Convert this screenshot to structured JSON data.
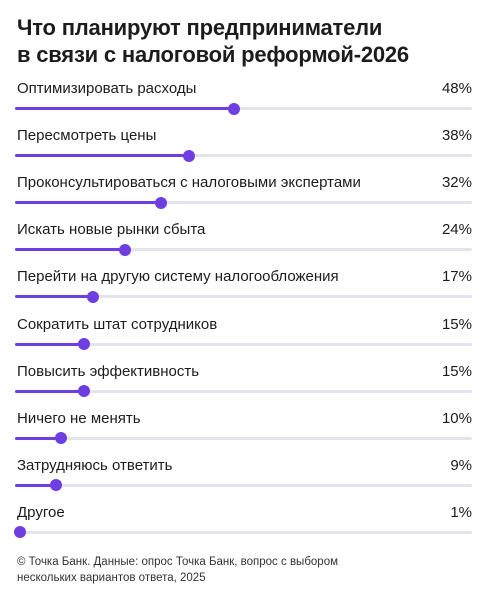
{
  "chart_data": {
    "type": "bar",
    "title_lines": [
      "Что планируют предприниматели",
      "в связи с налоговой реформой-2026"
    ],
    "xlim": [
      0,
      100
    ],
    "unit": "%",
    "categories": [
      "Оптимизировать расходы",
      "Пересмотреть цены",
      "Проконсультироваться с налоговыми экспертами",
      "Искать новые рынки сбыта",
      "Перейти на другую систему налогообложения",
      "Сократить штат сотрудников",
      "Повысить эффективность",
      "Ничего не менять",
      "Затрудняюсь ответить",
      "Другое"
    ],
    "values": [
      48,
      38,
      32,
      24,
      17,
      15,
      15,
      10,
      9,
      1
    ],
    "value_labels": [
      "48%",
      "38%",
      "32%",
      "24%",
      "17%",
      "15%",
      "15%",
      "10%",
      "9%",
      "1%"
    ],
    "colors": {
      "bar": "#6e3ee0",
      "track": "#e6e3ee",
      "text": "#1c1c1c"
    }
  },
  "footer_lines": [
    "© Точка Банк. Данные: опрос Точка Банк, вопрос с выбором",
    "нескольких вариантов ответа, 2025"
  ]
}
